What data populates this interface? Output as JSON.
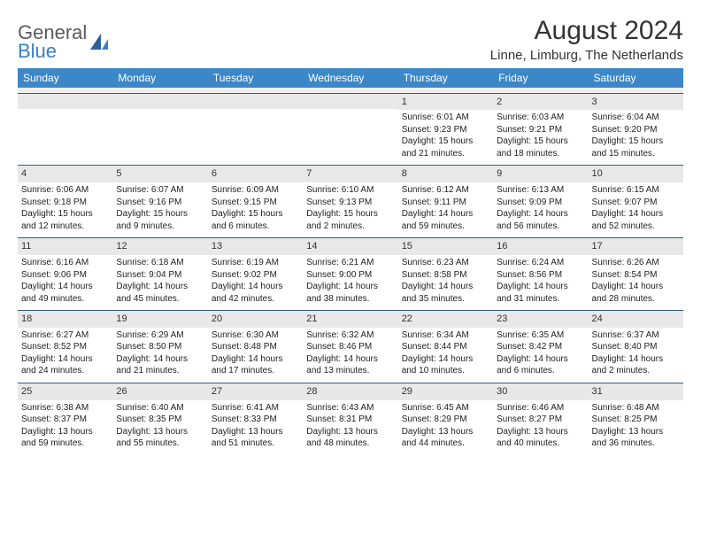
{
  "logo": {
    "text1": "General",
    "text2": "Blue"
  },
  "title": "August 2024",
  "location": "Linne, Limburg, The Netherlands",
  "colors": {
    "header_bg": "#3b87c8",
    "header_text": "#ffffff",
    "daynum_bg": "#e8e8e8",
    "border": "#2f5d8a",
    "logo_blue": "#3a7fc4",
    "logo_gray": "#5a5a5a"
  },
  "day_headers": [
    "Sunday",
    "Monday",
    "Tuesday",
    "Wednesday",
    "Thursday",
    "Friday",
    "Saturday"
  ],
  "weeks": [
    [
      null,
      null,
      null,
      null,
      {
        "n": "1",
        "sr": "6:01 AM",
        "ss": "9:23 PM",
        "dh": "15",
        "dm": "21"
      },
      {
        "n": "2",
        "sr": "6:03 AM",
        "ss": "9:21 PM",
        "dh": "15",
        "dm": "18"
      },
      {
        "n": "3",
        "sr": "6:04 AM",
        "ss": "9:20 PM",
        "dh": "15",
        "dm": "15"
      }
    ],
    [
      {
        "n": "4",
        "sr": "6:06 AM",
        "ss": "9:18 PM",
        "dh": "15",
        "dm": "12"
      },
      {
        "n": "5",
        "sr": "6:07 AM",
        "ss": "9:16 PM",
        "dh": "15",
        "dm": "9"
      },
      {
        "n": "6",
        "sr": "6:09 AM",
        "ss": "9:15 PM",
        "dh": "15",
        "dm": "6"
      },
      {
        "n": "7",
        "sr": "6:10 AM",
        "ss": "9:13 PM",
        "dh": "15",
        "dm": "2"
      },
      {
        "n": "8",
        "sr": "6:12 AM",
        "ss": "9:11 PM",
        "dh": "14",
        "dm": "59"
      },
      {
        "n": "9",
        "sr": "6:13 AM",
        "ss": "9:09 PM",
        "dh": "14",
        "dm": "56"
      },
      {
        "n": "10",
        "sr": "6:15 AM",
        "ss": "9:07 PM",
        "dh": "14",
        "dm": "52"
      }
    ],
    [
      {
        "n": "11",
        "sr": "6:16 AM",
        "ss": "9:06 PM",
        "dh": "14",
        "dm": "49"
      },
      {
        "n": "12",
        "sr": "6:18 AM",
        "ss": "9:04 PM",
        "dh": "14",
        "dm": "45"
      },
      {
        "n": "13",
        "sr": "6:19 AM",
        "ss": "9:02 PM",
        "dh": "14",
        "dm": "42"
      },
      {
        "n": "14",
        "sr": "6:21 AM",
        "ss": "9:00 PM",
        "dh": "14",
        "dm": "38"
      },
      {
        "n": "15",
        "sr": "6:23 AM",
        "ss": "8:58 PM",
        "dh": "14",
        "dm": "35"
      },
      {
        "n": "16",
        "sr": "6:24 AM",
        "ss": "8:56 PM",
        "dh": "14",
        "dm": "31"
      },
      {
        "n": "17",
        "sr": "6:26 AM",
        "ss": "8:54 PM",
        "dh": "14",
        "dm": "28"
      }
    ],
    [
      {
        "n": "18",
        "sr": "6:27 AM",
        "ss": "8:52 PM",
        "dh": "14",
        "dm": "24"
      },
      {
        "n": "19",
        "sr": "6:29 AM",
        "ss": "8:50 PM",
        "dh": "14",
        "dm": "21"
      },
      {
        "n": "20",
        "sr": "6:30 AM",
        "ss": "8:48 PM",
        "dh": "14",
        "dm": "17"
      },
      {
        "n": "21",
        "sr": "6:32 AM",
        "ss": "8:46 PM",
        "dh": "14",
        "dm": "13"
      },
      {
        "n": "22",
        "sr": "6:34 AM",
        "ss": "8:44 PM",
        "dh": "14",
        "dm": "10"
      },
      {
        "n": "23",
        "sr": "6:35 AM",
        "ss": "8:42 PM",
        "dh": "14",
        "dm": "6"
      },
      {
        "n": "24",
        "sr": "6:37 AM",
        "ss": "8:40 PM",
        "dh": "14",
        "dm": "2"
      }
    ],
    [
      {
        "n": "25",
        "sr": "6:38 AM",
        "ss": "8:37 PM",
        "dh": "13",
        "dm": "59"
      },
      {
        "n": "26",
        "sr": "6:40 AM",
        "ss": "8:35 PM",
        "dh": "13",
        "dm": "55"
      },
      {
        "n": "27",
        "sr": "6:41 AM",
        "ss": "8:33 PM",
        "dh": "13",
        "dm": "51"
      },
      {
        "n": "28",
        "sr": "6:43 AM",
        "ss": "8:31 PM",
        "dh": "13",
        "dm": "48"
      },
      {
        "n": "29",
        "sr": "6:45 AM",
        "ss": "8:29 PM",
        "dh": "13",
        "dm": "44"
      },
      {
        "n": "30",
        "sr": "6:46 AM",
        "ss": "8:27 PM",
        "dh": "13",
        "dm": "40"
      },
      {
        "n": "31",
        "sr": "6:48 AM",
        "ss": "8:25 PM",
        "dh": "13",
        "dm": "36"
      }
    ]
  ],
  "labels": {
    "sunrise": "Sunrise:",
    "sunset": "Sunset:",
    "daylight": "Daylight:",
    "hours": "hours",
    "and": "and",
    "minutes": "minutes."
  }
}
